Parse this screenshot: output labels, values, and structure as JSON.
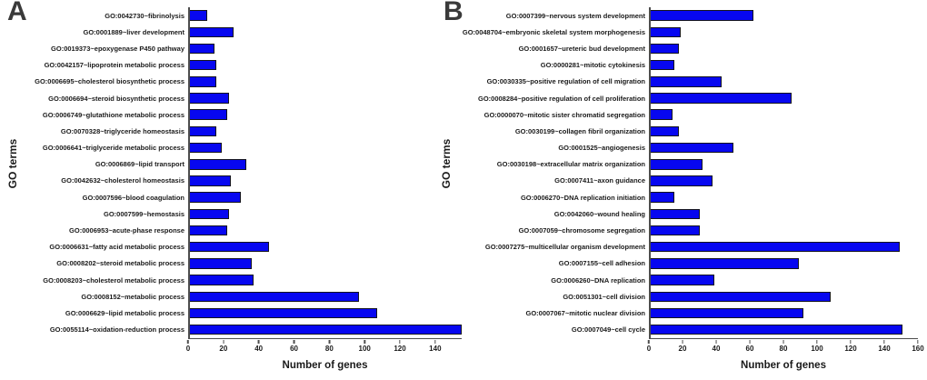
{
  "colors": {
    "bar_fill": "#0707f0",
    "bar_border": "#14141e",
    "axis": "#4d4d4d",
    "text": "#1a1a1a",
    "panel_letter": "#3a3a3a",
    "background": "#ffffff"
  },
  "chart_data": [
    {
      "type": "bar",
      "orientation": "horizontal",
      "panel_letter": "A",
      "ylabel": "GO terms",
      "xlabel": "Number of genes",
      "grid": false,
      "legend": false,
      "xlim": [
        0,
        155
      ],
      "xticks": [
        0,
        20,
        40,
        60,
        80,
        100,
        120,
        140
      ],
      "categories": [
        "GO:0042730~fibrinolysis",
        "GO:0001889~liver development",
        "GO:0019373~epoxygenase P450 pathway",
        "GO:0042157~lipoprotein metabolic process",
        "GO:0006695~cholesterol biosynthetic process",
        "GO:0006694~steroid biosynthetic process",
        "GO:0006749~glutathione metabolic process",
        "GO:0070328~triglyceride homeostasis",
        "GO:0006641~triglyceride metabolic process",
        "GO:0006869~lipid transport",
        "GO:0042632~cholesterol homeostasis",
        "GO:0007596~blood coagulation",
        "GO:0007599~hemostasis",
        "GO:0006953~acute-phase response",
        "GO:0006631~fatty acid metabolic process",
        "GO:0008202~steroid metabolic process",
        "GO:0008203~cholesterol metabolic process",
        "GO:0008152~metabolic process",
        "GO:0006629~lipid metabolic process",
        "GO:0055114~oxidation-reduction process"
      ],
      "values": [
        11,
        26,
        15,
        16,
        16,
        23,
        22,
        16,
        19,
        33,
        24,
        30,
        23,
        22,
        46,
        36,
        37,
        97,
        107,
        155
      ]
    },
    {
      "type": "bar",
      "orientation": "horizontal",
      "panel_letter": "B",
      "ylabel": "GO terms",
      "xlabel": "Number of genes",
      "grid": false,
      "legend": false,
      "xlim": [
        0,
        160
      ],
      "xticks": [
        0,
        20,
        40,
        60,
        80,
        100,
        120,
        140,
        160
      ],
      "categories": [
        "GO:0007399~nervous system development",
        "GO:0048704~embryonic skeletal system morphogenesis",
        "GO:0001657~ureteric bud development",
        "GO:0000281~mitotic cytokinesis",
        "GO:0030335~positive regulation of cell migration",
        "GO:0008284~positive regulation of cell proliferation",
        "GO:0000070~mitotic sister chromatid segregation",
        "GO:0030199~collagen fibril organization",
        "GO:0001525~angiogenesis",
        "GO:0030198~extracellular matrix organization",
        "GO:0007411~axon guidance",
        "GO:0006270~DNA replication initiation",
        "GO:0042060~wound healing",
        "GO:0007059~chromosome segregation",
        "GO:0007275~multicellular organism development",
        "GO:0007155~cell adhesion",
        "GO:0006260~DNA replication",
        "GO:0051301~cell division",
        "GO:0007067~mitotic nuclear division",
        "GO:0007049~cell cycle"
      ],
      "values": [
        62,
        19,
        18,
        15,
        43,
        85,
        14,
        18,
        50,
        32,
        38,
        15,
        30,
        30,
        149,
        89,
        39,
        108,
        92,
        151
      ]
    }
  ]
}
